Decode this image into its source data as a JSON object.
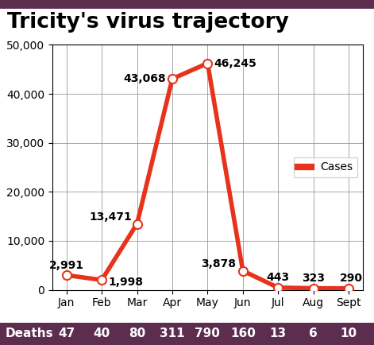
{
  "chart_data": {
    "type": "line",
    "title": "Tricity's virus trajectory",
    "categories": [
      "Jan",
      "Feb",
      "Mar",
      "Apr",
      "May",
      "Jun",
      "Jul",
      "Aug",
      "Sept"
    ],
    "series": [
      {
        "name": "Cases",
        "color": "#e8331c",
        "marker": "o",
        "line_style": "solid",
        "values": [
          2991,
          1998,
          13471,
          43068,
          46245,
          3878,
          443,
          323,
          290
        ],
        "value_labels": [
          "2,991",
          "1,998",
          "13,471",
          "43,068",
          "46,245",
          "3,878",
          "443",
          "323",
          "290"
        ]
      }
    ],
    "ylim": [
      0,
      50000
    ],
    "yticks": [
      0,
      {
        "value": 10000,
        "label": "10,000"
      },
      {
        "value": 20000,
        "label": "20,000"
      },
      {
        "value": 30000,
        "label": "30,000"
      },
      {
        "value": 40000,
        "label": "40,000"
      },
      {
        "value": 50000,
        "label": "50,000"
      }
    ],
    "grid": true,
    "legend": "center right",
    "data_labels": true,
    "deaths_row": {
      "label": "Deaths",
      "values": [
        47,
        40,
        80,
        311,
        790,
        160,
        13,
        6,
        10
      ]
    }
  }
}
